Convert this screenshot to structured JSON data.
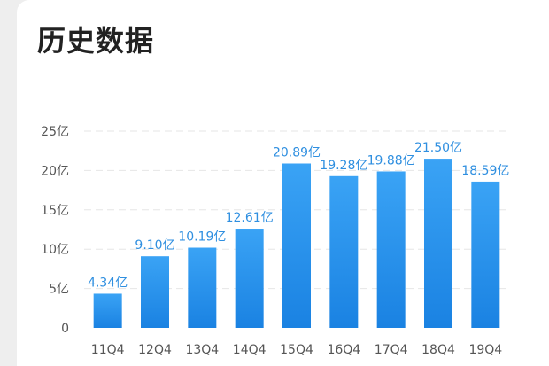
{
  "page": {
    "title": "历史数据"
  },
  "chart_data": {
    "type": "bar",
    "categories": [
      "11Q4",
      "12Q4",
      "13Q4",
      "14Q4",
      "15Q4",
      "16Q4",
      "17Q4",
      "18Q4",
      "19Q4"
    ],
    "values": [
      4.34,
      9.1,
      10.19,
      12.61,
      20.89,
      19.28,
      19.88,
      21.5,
      18.59
    ],
    "value_labels": [
      "4.34亿",
      "9.10亿",
      "10.19亿",
      "12.61亿",
      "20.89亿",
      "19.28亿",
      "19.88亿",
      "21.50亿",
      "18.59亿"
    ],
    "y_ticks": [
      0,
      5,
      10,
      15,
      20,
      25
    ],
    "y_tick_labels": [
      "0",
      "5亿",
      "10亿",
      "15亿",
      "20亿",
      "25亿"
    ],
    "ylim": [
      0,
      25
    ],
    "grid": true,
    "colors": {
      "bar_top": "#3aa3f5",
      "bar_bottom": "#1a82e2",
      "value_label": "#2f8fe0",
      "axis_label": "#555555",
      "grid": "#e6e6e6"
    }
  }
}
